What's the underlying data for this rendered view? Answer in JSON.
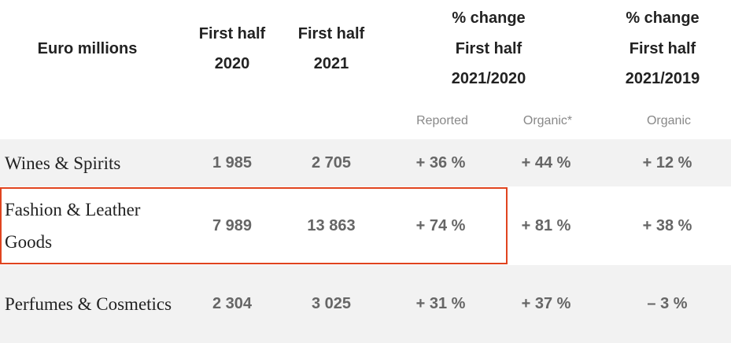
{
  "table": {
    "header": [
      [
        "Euro millions"
      ],
      [
        "First half",
        "2020"
      ],
      [
        "First half",
        "2021"
      ],
      [
        "% change",
        "First half",
        "2021/2020"
      ],
      [
        "% change",
        "First half",
        "2021/2019"
      ]
    ],
    "subheader": [
      "Reported",
      "Organic*",
      "Organic"
    ],
    "rows": [
      [
        "Wines & Spirits",
        "1 985",
        "2 705",
        "+ 36 %",
        "+ 44 %",
        "+ 12 %"
      ],
      [
        "Fashion & Leather Goods",
        "7 989",
        "13 863",
        "+ 74 %",
        "+ 81 %",
        "+ 38 %"
      ],
      [
        "Perfumes & Cosmetics",
        "2 304",
        "3 025",
        "+ 31 %",
        "+ 37 %",
        "– 3 %"
      ]
    ]
  }
}
